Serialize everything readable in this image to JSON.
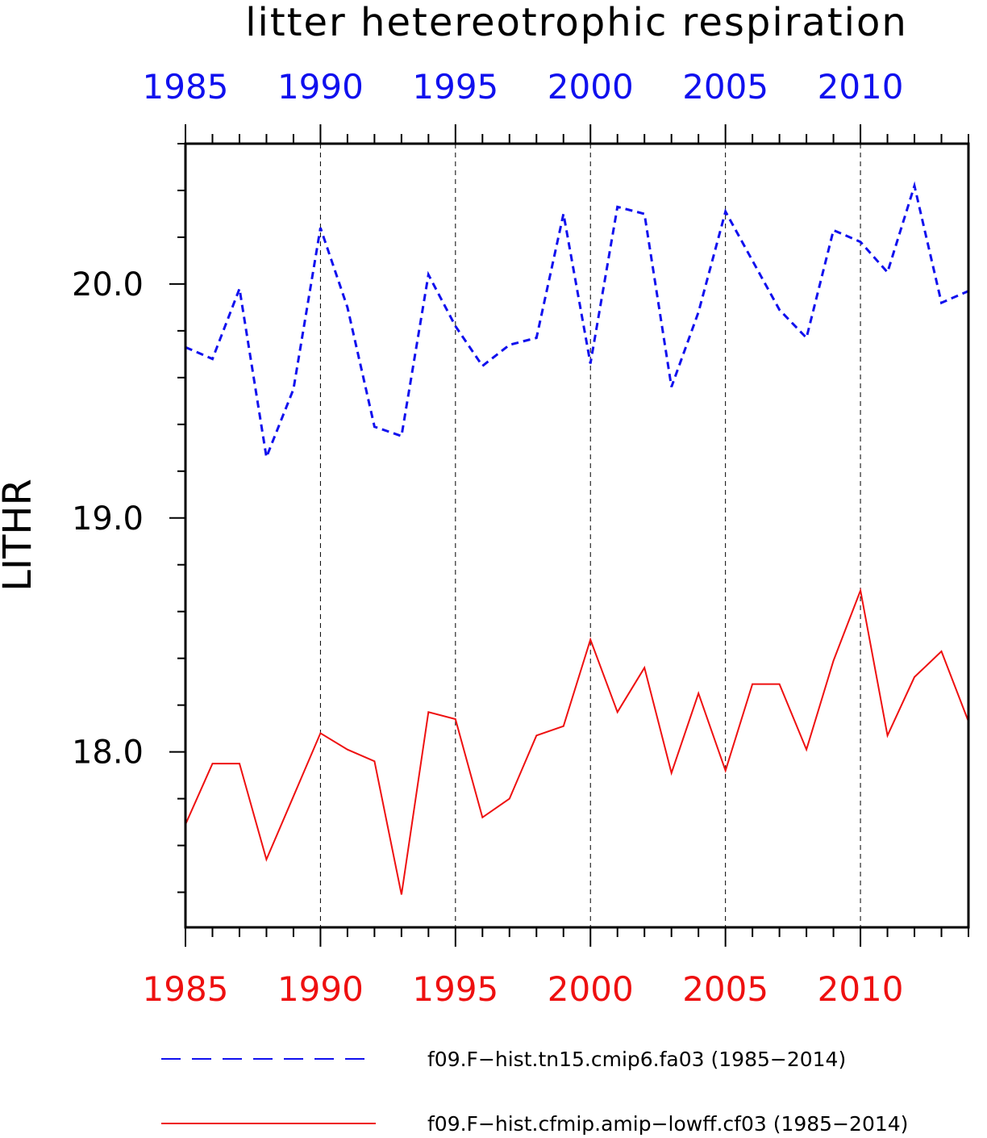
{
  "chart_data": {
    "type": "line",
    "title": "litter hetereotrophic respiration",
    "ylabel": "LITHR",
    "xlabel": "",
    "xlim": [
      1985,
      2014
    ],
    "ylim": [
      17.25,
      20.6
    ],
    "yticks": [
      18.0,
      19.0,
      20.0
    ],
    "ytick_labels": [
      "18.0",
      "19.0",
      "20.0"
    ],
    "yminor_step": 0.2,
    "xticks": [
      1985,
      1990,
      1995,
      2000,
      2005,
      2010
    ],
    "xtick_labels": [
      "1985",
      "1990",
      "1995",
      "2000",
      "2005",
      "2010"
    ],
    "top_axis_color": "#1010ee",
    "bottom_axis_color": "#ee1010",
    "grid": "vertical dashed at major x ticks",
    "legend_placement": "bottom, below plot",
    "x": [
      1985,
      1986,
      1987,
      1988,
      1989,
      1990,
      1991,
      1992,
      1993,
      1994,
      1995,
      1996,
      1997,
      1998,
      1999,
      2000,
      2001,
      2002,
      2003,
      2004,
      2005,
      2006,
      2007,
      2008,
      2009,
      2010,
      2011,
      2012,
      2013,
      2014
    ],
    "series": [
      {
        "name": "f09.F−hist.tn15.cmip6.fa03 (1985−2014)",
        "color": "#1010ee",
        "style": "dashed",
        "values": [
          19.73,
          19.68,
          19.98,
          19.26,
          19.55,
          20.24,
          19.9,
          19.39,
          19.35,
          20.04,
          19.82,
          19.65,
          19.74,
          19.77,
          20.3,
          19.66,
          20.33,
          20.3,
          19.56,
          19.88,
          20.31,
          20.1,
          19.89,
          19.77,
          20.23,
          20.18,
          20.05,
          20.42,
          19.92,
          19.97
        ]
      },
      {
        "name": "f09.F−hist.cfmip.amip−lowff.cf03 (1985−2014)",
        "color": "#ee1010",
        "style": "solid",
        "values": [
          17.69,
          17.95,
          17.95,
          17.54,
          17.81,
          18.08,
          18.01,
          17.96,
          17.39,
          18.17,
          18.14,
          17.72,
          17.8,
          18.07,
          18.11,
          18.48,
          18.17,
          18.36,
          17.91,
          18.25,
          17.92,
          18.29,
          18.29,
          18.01,
          18.39,
          18.69,
          18.07,
          18.32,
          18.43,
          18.13
        ]
      }
    ]
  }
}
